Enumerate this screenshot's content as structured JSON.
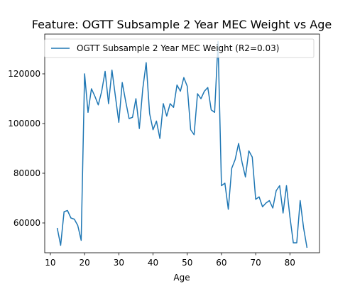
{
  "chart_data": {
    "type": "line",
    "title": "Feature: OGTT Subsample 2 Year MEC Weight vs Age",
    "xlabel": "Age",
    "ylabel": "",
    "xlim": [
      8.35,
      88.65
    ],
    "ylim": [
      48000,
      136000
    ],
    "xticks": [
      10,
      20,
      30,
      40,
      50,
      60,
      70,
      80
    ],
    "yticks": [
      60000,
      80000,
      100000,
      120000
    ],
    "grid": false,
    "legend_position": "top-left",
    "line_color": "#1f77b4",
    "series": [
      {
        "name": "OGTT Subsample 2 Year MEC Weight (R2=0.03)",
        "x": [
          12,
          13,
          14,
          15,
          16,
          17,
          18,
          19,
          20,
          21,
          22,
          23,
          24,
          25,
          26,
          27,
          28,
          29,
          30,
          31,
          32,
          33,
          34,
          35,
          36,
          37,
          38,
          39,
          40,
          41,
          42,
          43,
          44,
          45,
          46,
          47,
          48,
          49,
          50,
          51,
          52,
          53,
          54,
          55,
          56,
          57,
          58,
          59,
          60,
          61,
          62,
          63,
          64,
          65,
          66,
          67,
          68,
          69,
          70,
          71,
          72,
          73,
          74,
          75,
          76,
          77,
          78,
          79,
          80,
          81,
          82,
          83,
          84,
          85
        ],
        "y": [
          58000,
          51000,
          64500,
          65000,
          62000,
          61500,
          59000,
          53000,
          120000,
          104500,
          114000,
          111000,
          107500,
          113000,
          121000,
          108000,
          121500,
          111000,
          100500,
          116500,
          109000,
          102000,
          102500,
          110000,
          98000,
          114000,
          124500,
          104000,
          97500,
          101000,
          94000,
          108000,
          103000,
          108000,
          106500,
          115500,
          113000,
          118500,
          115000,
          97500,
          95500,
          112000,
          110000,
          113000,
          114500,
          105500,
          104500,
          133000,
          75000,
          76000,
          65500,
          82000,
          85500,
          92000,
          84500,
          78500,
          89000,
          86500,
          69500,
          70500,
          66500,
          68000,
          69000,
          66000,
          73000,
          75000,
          64000,
          75000,
          62500,
          52000,
          52000,
          69000,
          58000,
          50000
        ]
      }
    ]
  }
}
